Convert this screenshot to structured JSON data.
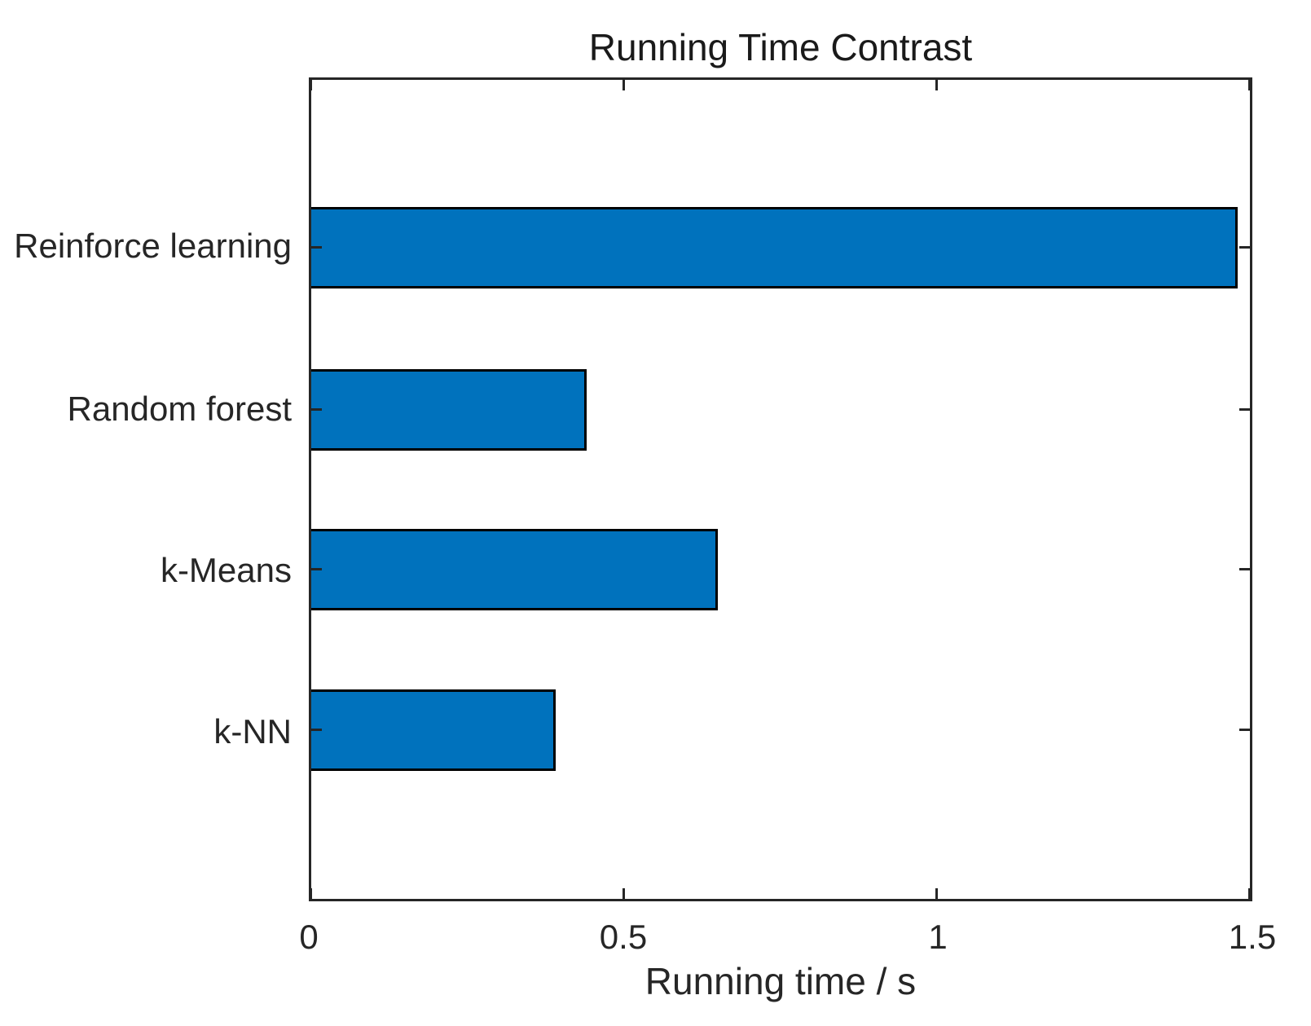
{
  "chart_data": {
    "type": "bar",
    "orientation": "horizontal",
    "title": "Running Time Contrast",
    "xlabel": "Running time / s",
    "ylabel": "",
    "categories": [
      "Reinforce learning",
      "Random forest",
      "k-Means",
      "k-NN"
    ],
    "values": [
      1.48,
      0.44,
      0.65,
      0.39
    ],
    "xlim": [
      0,
      1.5
    ],
    "xticks": [
      0,
      0.5,
      1,
      1.5
    ],
    "xtick_labels": [
      "0",
      "0.5",
      "1",
      "1.5"
    ],
    "grid": false,
    "legend": "none",
    "box": true,
    "tick_direction": "in",
    "bar_color": "#0072BD",
    "bar_edge_color": "#000000",
    "axis_color": "#262626",
    "background_color": "#ffffff"
  }
}
